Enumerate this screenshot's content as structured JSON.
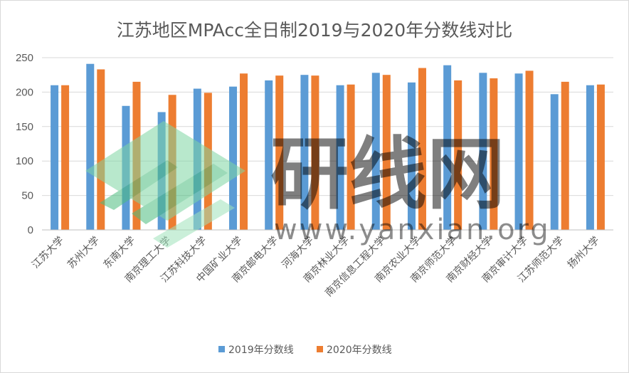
{
  "chart_data": {
    "type": "bar",
    "title": "江苏地区MPAcc全日制2019与2020年分数线对比",
    "categories": [
      "江苏大学",
      "苏州大学",
      "东南大学",
      "南京理工大学",
      "江苏科技大学",
      "中国矿业大学",
      "南京邮电大学",
      "河海大学",
      "南京林业大学",
      "南京信息工程大学",
      "南京农业大学",
      "南京师范大学",
      "南京财经大学",
      "南京审计大学",
      "江苏师范大学",
      "扬州大学"
    ],
    "series": [
      {
        "name": "2019年分数线",
        "color": "#5b9bd5",
        "values": [
          210,
          241,
          180,
          171,
          205,
          208,
          217,
          225,
          210,
          228,
          214,
          239,
          228,
          227,
          197,
          210
        ]
      },
      {
        "name": "2020年分数线",
        "color": "#ed7d31",
        "values": [
          210,
          233,
          215,
          196,
          199,
          227,
          224,
          224,
          211,
          225,
          235,
          217,
          220,
          231,
          215,
          211
        ]
      }
    ],
    "ylim": [
      0,
      250
    ],
    "yticks": [
      "0",
      "50",
      "100",
      "150",
      "200",
      "250"
    ],
    "grid": true,
    "legend": "bottom"
  },
  "watermark": {
    "text": "研线网",
    "url": "www.yanxian.org"
  }
}
